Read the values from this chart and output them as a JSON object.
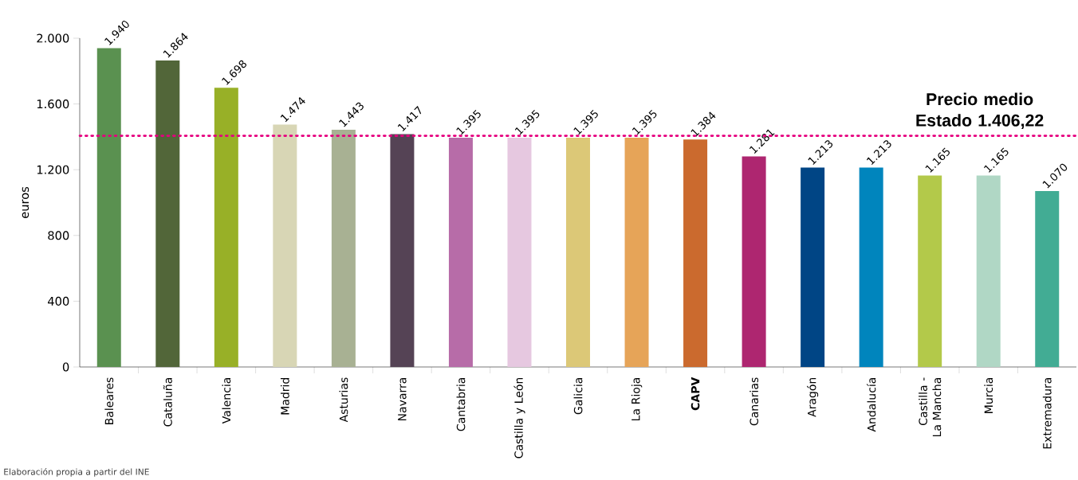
{
  "chart_data": {
    "type": "bar",
    "ylabel": "euros",
    "categories": [
      "Baleares",
      "Cataluña",
      "Valencia",
      "Madrid",
      "Asturias",
      "Navarra",
      "Cantabria",
      "Castilla y León",
      "Galicia",
      "La Rioja",
      "**CAPV**",
      "Canarias",
      "Aragón",
      "Andalucía",
      "Castilla - La Mancha",
      "Murcia",
      "Extremadura"
    ],
    "values": [
      1940,
      1864,
      1698,
      1474,
      1443,
      1417,
      1395,
      1395,
      1395,
      1395,
      1384,
      1281,
      1213,
      1213,
      1165,
      1165,
      1070
    ],
    "value_labels": [
      "1.940",
      "1.864",
      "1.698",
      "1.474",
      "1.443",
      "1.417",
      "1.395",
      "1.395",
      "1.395",
      "1.395",
      "1.384",
      "1.281",
      "1.213",
      "1.213",
      "1.165",
      "1.165",
      "1.070"
    ],
    "colors": [
      "#5a9150",
      "#526639",
      "#98b027",
      "#d8d6b5",
      "#a8b193",
      "#554355",
      "#b76ca8",
      "#e6c8e0",
      "#dcc877",
      "#e6a458",
      "#cb6a2e",
      "#ae2670",
      "#004585",
      "#0085bd",
      "#b3c94a",
      "#b0d7c5",
      "#42ac94"
    ],
    "ylim": [
      0,
      2000
    ],
    "yticks": [
      0,
      400,
      800,
      {
        "value": 1200,
        "label": "1.200"
      },
      {
        "value": 1600,
        "label": "1.600"
      },
      {
        "value": 2000,
        "label": "2.000"
      }
    ],
    "ref_lines": [
      {
        "axis": "y",
        "value": 1406.22,
        "label": "Precio medio Estado 1.406,22",
        "color": "#e6007e",
        "line_style": "dotted"
      }
    ],
    "annotations": [
      "Elaboración propia a partir del INE"
    ],
    "grid": false
  }
}
